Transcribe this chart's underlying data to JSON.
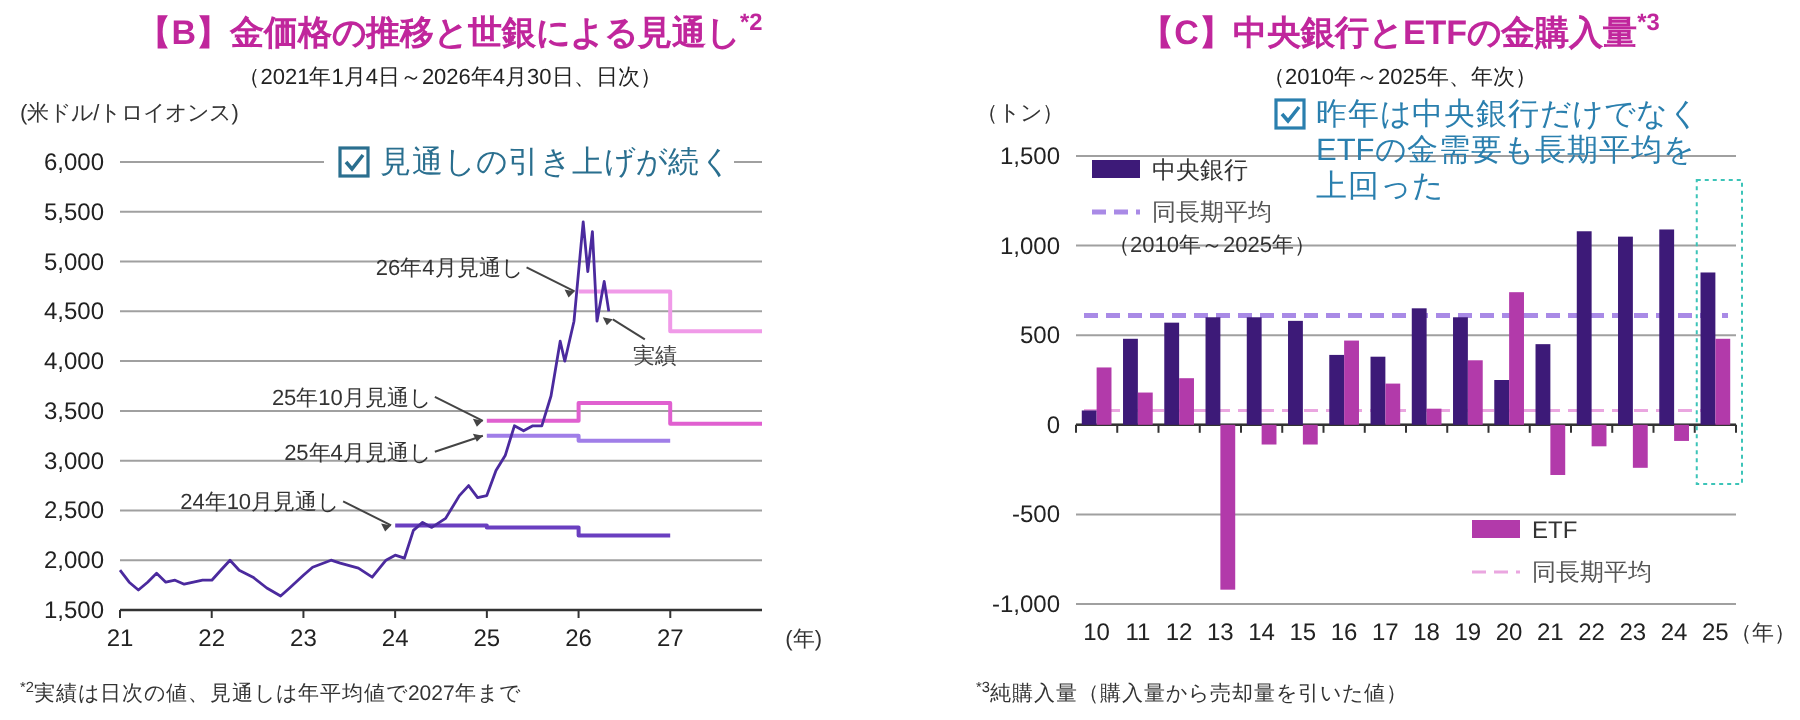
{
  "chart_data": [
    {
      "type": "line",
      "title": "【B】金価格の推移と世銀による見通し$^{*2}$",
      "subtitle": "（2021年1月4日～2026年4月30日、日次）",
      "ylabel": "(米ドル/トロイオンス)",
      "xlabel": "(年)",
      "xlim": [
        2021,
        2028
      ],
      "xticks": [
        {
          "value": 2021,
          "label": "21"
        },
        {
          "value": 2022,
          "label": "22"
        },
        {
          "value": 2023,
          "label": "23"
        },
        {
          "value": 2024,
          "label": "24"
        },
        {
          "value": 2025,
          "label": "25"
        },
        {
          "value": 2026,
          "label": "26"
        },
        {
          "value": 2027,
          "label": "27"
        }
      ],
      "ylim": [
        1500,
        6000
      ],
      "yticks": [
        {
          "value": 1500,
          "label": "1,500"
        },
        {
          "value": 2000,
          "label": "2,000"
        },
        {
          "value": 2500,
          "label": "2,500"
        },
        {
          "value": 3000,
          "label": "3,000"
        },
        {
          "value": 3500,
          "label": "3,500"
        },
        {
          "value": 4000,
          "label": "4,000"
        },
        {
          "value": 4500,
          "label": "4,500"
        },
        {
          "value": 5000,
          "label": "5,000"
        },
        {
          "value": 5500,
          "label": "5,500"
        },
        {
          "value": 6000,
          "label": "6,000"
        }
      ],
      "grid": "y",
      "series": [
        {
          "name": "24年10月見通し",
          "color": "#6a3fc0",
          "x": [
            2024,
            2025,
            2025,
            2026,
            2026,
            2027
          ],
          "values": [
            2350,
            2350,
            2330,
            2330,
            2250,
            2250
          ]
        },
        {
          "name": "25年4月見通し",
          "color": "#a07ee8",
          "x": [
            2025,
            2026,
            2026,
            2027
          ],
          "values": [
            3250,
            3250,
            3200,
            3200
          ]
        },
        {
          "name": "25年10月見通し",
          "color": "#e060d0",
          "x": [
            2025,
            2026,
            2026,
            2027,
            2027,
            2028
          ],
          "values": [
            3400,
            3400,
            3580,
            3580,
            3370,
            3370
          ]
        },
        {
          "name": "26年4月見通し",
          "color": "#f09ae8",
          "x": [
            2026,
            2027,
            2027,
            2028
          ],
          "values": [
            4700,
            4700,
            4300,
            4300
          ]
        },
        {
          "name": "実績",
          "color": "#4b2a9e",
          "x": [
            2021.0,
            2021.1,
            2021.2,
            2021.3,
            2021.4,
            2021.5,
            2021.6,
            2021.7,
            2021.9,
            2022.0,
            2022.1,
            2022.2,
            2022.3,
            2022.45,
            2022.6,
            2022.75,
            2022.85,
            2023.0,
            2023.1,
            2023.3,
            2023.4,
            2023.6,
            2023.75,
            2023.9,
            2024.0,
            2024.1,
            2024.2,
            2024.3,
            2024.4,
            2024.55,
            2024.7,
            2024.8,
            2024.9,
            2025.0,
            2025.1,
            2025.2,
            2025.3,
            2025.4,
            2025.5,
            2025.6,
            2025.7,
            2025.8,
            2025.85,
            2025.95,
            2026.05,
            2026.1,
            2026.15,
            2026.2,
            2026.28,
            2026.33
          ],
          "values": [
            1900,
            1780,
            1700,
            1780,
            1870,
            1780,
            1800,
            1760,
            1800,
            1800,
            1900,
            2000,
            1900,
            1830,
            1720,
            1640,
            1720,
            1850,
            1930,
            2000,
            1970,
            1920,
            1830,
            2000,
            2050,
            2020,
            2300,
            2380,
            2330,
            2420,
            2650,
            2750,
            2630,
            2650,
            2900,
            3050,
            3350,
            3300,
            3350,
            3350,
            3650,
            4200,
            4000,
            4400,
            5400,
            4900,
            5300,
            4400,
            4800,
            4500
          ]
        }
      ],
      "annotations": [
        "見通しの引き上げが続く",
        "$^{*2}$実績は日次の値、見通しは年平均値で2027年まで"
      ]
    },
    {
      "type": "bar",
      "title": "【C】中央銀行とETFの金購入量$^{*3}$",
      "subtitle": "（2010年～2025年、年次）",
      "ylabel": "（トン）",
      "xlabel": "（年）",
      "categories": [
        "10",
        "11",
        "12",
        "13",
        "14",
        "15",
        "16",
        "17",
        "18",
        "19",
        "20",
        "21",
        "22",
        "23",
        "24",
        "25"
      ],
      "ylim": [
        -1000,
        1500
      ],
      "yticks": [
        {
          "value": -1000,
          "label": "-1,000"
        },
        -500,
        0,
        500,
        {
          "value": 1000,
          "label": "1,000"
        },
        {
          "value": 1500,
          "label": "1,500"
        }
      ],
      "grid": "y",
      "legend": "top left",
      "series": [
        {
          "name": "中央銀行",
          "color": "#3d1a78",
          "values": [
            80,
            480,
            570,
            600,
            600,
            580,
            390,
            380,
            650,
            600,
            250,
            450,
            1080,
            1050,
            1090,
            850
          ]
        },
        {
          "name": "ETF",
          "color": "#b23aaa",
          "values": [
            320,
            180,
            260,
            -920,
            -110,
            -110,
            470,
            230,
            90,
            360,
            740,
            -280,
            -120,
            -240,
            -90,
            480
          ]
        }
      ],
      "ref_lines": [
        {
          "axis": "y",
          "value": 610,
          "label": "同長期平均",
          "color": "#a98ae6",
          "line_style": "dashed"
        },
        {
          "axis": "y",
          "value": 80,
          "label": "同長期平均",
          "color": "#eaa6e0",
          "line_style": "dashed"
        }
      ],
      "annotations": [
        "昨年は中央銀行だけでなくETFの金需要も長期平均を上回った",
        "（2010年～2025年）",
        "$^{*3}$純購入量（購入量から売却量を引いた値）"
      ]
    }
  ]
}
